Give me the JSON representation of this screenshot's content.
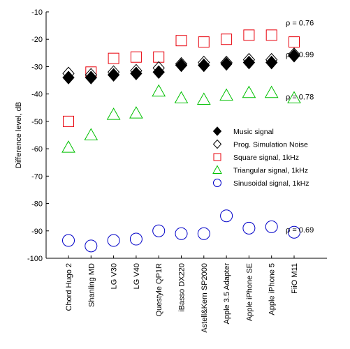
{
  "chart_data": {
    "type": "scatter",
    "title": "",
    "xlabel": "",
    "ylabel": "Difference level, dB",
    "ylim": [
      -100,
      -10
    ],
    "yticks": [
      -10,
      -20,
      -30,
      -40,
      -50,
      -60,
      -70,
      -80,
      -90,
      -100
    ],
    "grid": false,
    "legend_position": "center-right",
    "categories": [
      "Chord Hugo 2",
      "Shanling MD",
      "LG V30",
      "LG V40",
      "Questyle QP1R",
      "iBasso DX220",
      "Astell&Kern SP2000",
      "Apple 3.5 Adapter",
      "Apple iPhone SE",
      "Apple iPhone 5",
      "FiiO M11"
    ],
    "series": [
      {
        "name": "Music signal",
        "marker": "diamond-filled",
        "color": "#000000",
        "values": [
          -34,
          -34,
          -33,
          -32.5,
          -32,
          -29.5,
          -29.5,
          -29,
          -28.5,
          -28.5,
          -26
        ]
      },
      {
        "name": "Prog. Simulation Noise",
        "marker": "diamond-open",
        "color": "#000000",
        "values": [
          -32.5,
          -33,
          -32,
          -31.5,
          -30.5,
          -29,
          -28.5,
          -28.5,
          -27.5,
          -27.5,
          -25.5
        ]
      },
      {
        "name": "Square signal, 1kHz",
        "marker": "square-open",
        "color": "#e8000b",
        "values": [
          -50,
          -32,
          -27,
          -26.5,
          -26.5,
          -20.5,
          -21,
          -20,
          -18.5,
          -18.5,
          -21
        ]
      },
      {
        "name": "Triangular signal, 1kHz",
        "marker": "triangle-open",
        "color": "#00c000",
        "values": [
          -59.5,
          -55,
          -47.5,
          -47,
          -39,
          -41.5,
          -42,
          -40.5,
          -39.5,
          -39.5,
          -41.5
        ]
      },
      {
        "name": "Sinusoidal signal, 1kHz",
        "marker": "circle-open",
        "color": "#0000c8",
        "values": [
          -93.5,
          -95.5,
          -93.5,
          -93,
          -90,
          -91,
          -91,
          -84.5,
          -89,
          -88.5,
          -90.5
        ]
      }
    ],
    "annotations": [
      {
        "text": "ρ = 0.76",
        "y": -14
      },
      {
        "text": "ρ = 0.99",
        "y": -25.5
      },
      {
        "text": "ρ = 0.78",
        "y": -41
      },
      {
        "text": "ρ = 0.69",
        "y": -89.5
      }
    ]
  }
}
